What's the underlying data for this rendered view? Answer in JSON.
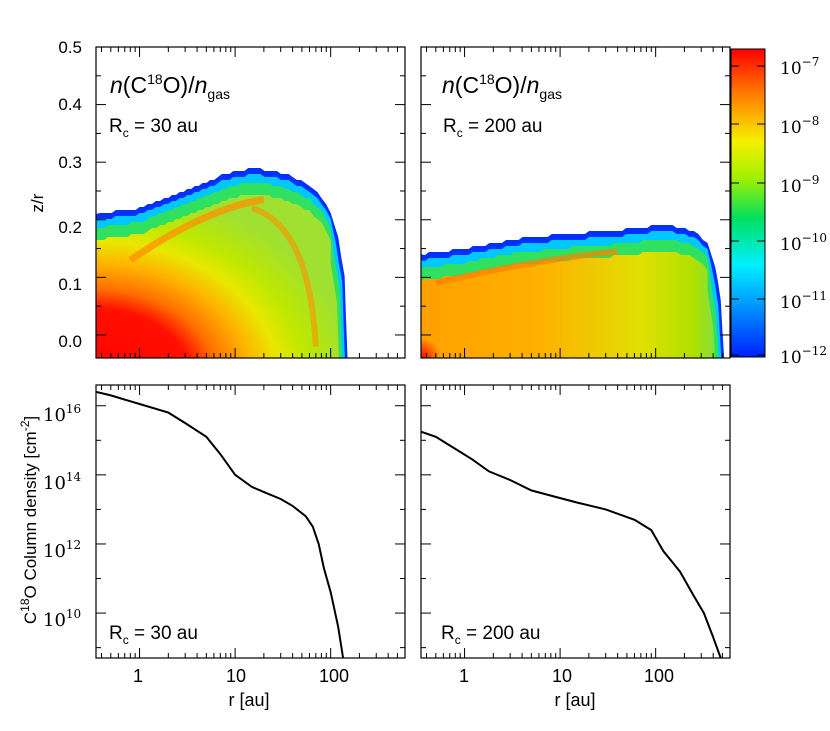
{
  "chart_data": [
    {
      "type": "heatmap",
      "panel": "top-left",
      "title": "n(C18O)/n_gas",
      "title_parts": {
        "n": "n",
        "paren_open": "(C",
        "sup": "18",
        "rest": "O)/",
        "n2": "n",
        "sub": "gas"
      },
      "annotation": {
        "label": "R",
        "sub": "c",
        "text": " = 30 au"
      },
      "ylabel": "z/r",
      "y_ticks": [
        "0.0",
        "0.1",
        "0.2",
        "0.3",
        "0.4",
        "0.5"
      ],
      "ylim": [
        -0.04,
        0.5
      ],
      "xscale": "log",
      "xlim": [
        0.35,
        600
      ],
      "boundary_r": [
        0.35,
        1,
        2,
        5,
        8,
        15,
        25,
        40,
        60,
        80,
        100,
        120,
        140,
        150
      ],
      "boundary_z": [
        0.21,
        0.22,
        0.24,
        0.265,
        0.28,
        0.29,
        0.285,
        0.275,
        0.26,
        0.24,
        0.21,
        0.17,
        0.1,
        -0.04
      ]
    },
    {
      "type": "heatmap",
      "panel": "top-right",
      "title": "n(C18O)/n_gas",
      "title_parts": {
        "n": "n",
        "paren_open": "(C",
        "sup": "18",
        "rest": "O)/",
        "n2": "n",
        "sub": "gas"
      },
      "annotation": {
        "label": "R",
        "sub": "c",
        "text": " = 200 au"
      },
      "xscale": "log",
      "xlim": [
        0.35,
        600
      ],
      "ylim": [
        -0.04,
        0.5
      ],
      "boundary_r": [
        0.35,
        1,
        3,
        10,
        30,
        60,
        100,
        150,
        250,
        350,
        420,
        480,
        520
      ],
      "boundary_z": [
        0.14,
        0.15,
        0.165,
        0.175,
        0.18,
        0.185,
        0.19,
        0.19,
        0.18,
        0.16,
        0.12,
        0.06,
        -0.04
      ]
    },
    {
      "type": "line",
      "panel": "bottom-left",
      "annotation": {
        "label": "R",
        "sub": "c",
        "text": " = 30 au"
      },
      "ylabel_parts": {
        "pre": "C",
        "sup": "18",
        "mid": "O Column density [cm",
        "sup2": "-2",
        "post": "]"
      },
      "xlabel": "r [au]",
      "xscale": "log",
      "yscale": "log",
      "xlim": [
        0.35,
        600
      ],
      "ylim_exp": [
        8.7,
        16.6
      ],
      "x_ticks": [
        "1",
        "10",
        "100"
      ],
      "y_ticks": [
        {
          "base": "10",
          "exp": "10"
        },
        {
          "base": "10",
          "exp": "12"
        },
        {
          "base": "10",
          "exp": "14"
        },
        {
          "base": "10",
          "exp": "16"
        }
      ],
      "x": [
        0.35,
        0.5,
        1,
        2,
        3,
        5,
        7,
        10,
        15,
        20,
        30,
        40,
        55,
        65,
        75,
        85,
        100,
        120,
        135
      ],
      "log_y": [
        16.4,
        16.3,
        16.05,
        15.8,
        15.5,
        15.1,
        14.6,
        14.0,
        13.65,
        13.5,
        13.3,
        13.1,
        12.8,
        12.5,
        12.0,
        11.3,
        10.6,
        9.6,
        8.7
      ]
    },
    {
      "type": "line",
      "panel": "bottom-right",
      "annotation": {
        "label": "R",
        "sub": "c",
        "text": " = 200 au"
      },
      "xlabel": "r [au]",
      "xscale": "log",
      "yscale": "log",
      "xlim": [
        0.35,
        600
      ],
      "ylim_exp": [
        8.7,
        16.6
      ],
      "x_ticks": [
        "1",
        "10",
        "100"
      ],
      "x": [
        0.35,
        0.5,
        0.8,
        1.2,
        1.8,
        3,
        5,
        8,
        15,
        30,
        60,
        90,
        120,
        180,
        250,
        320,
        400,
        480
      ],
      "log_y": [
        15.25,
        15.1,
        14.75,
        14.45,
        14.1,
        13.85,
        13.55,
        13.4,
        13.2,
        13.0,
        12.7,
        12.4,
        11.8,
        11.2,
        10.5,
        10.0,
        9.3,
        8.7
      ]
    }
  ],
  "colorbar": {
    "tick_labels": [
      {
        "base": "10",
        "exp": "−7"
      },
      {
        "base": "10",
        "exp": "−8"
      },
      {
        "base": "10",
        "exp": "−9"
      },
      {
        "base": "10",
        "exp": "−10"
      },
      {
        "base": "10",
        "exp": "−11"
      },
      {
        "base": "10",
        "exp": "−12"
      }
    ]
  },
  "colors": {
    "red": "#ff0000",
    "orange": "#ff8000",
    "yellow": "#f5f000",
    "green": "#00e000",
    "cyan": "#00f0ff",
    "blue": "#0020ff",
    "axis": "#000000",
    "curve": "#000000"
  }
}
